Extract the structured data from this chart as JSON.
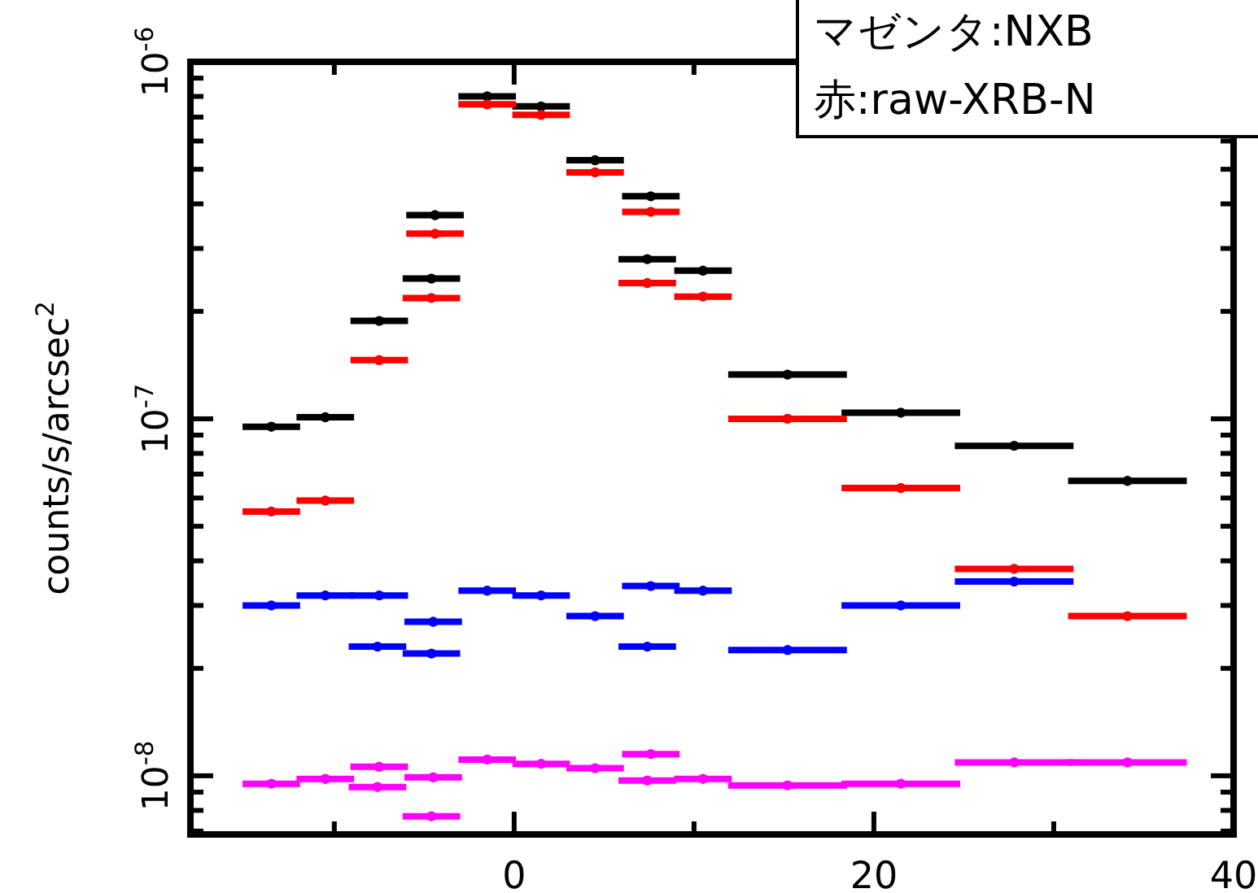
{
  "chart_data": {
    "type": "scatter",
    "ylabel": "counts/s/arcsec$^{2}$",
    "log": "y",
    "marker": "circle",
    "grid": false,
    "xlim": [
      -18,
      40
    ],
    "xticks": [
      0,
      20,
      40,
      {
        "value": -10,
        "label": null
      },
      {
        "value": 10,
        "label": null
      },
      {
        "value": 30,
        "label": null
      }
    ],
    "ylim": [
      6.85e-09,
      1e-06
    ],
    "yticks": [
      {
        "value": 1e-06,
        "label": "10$^{-6}$"
      },
      {
        "value": 1e-07,
        "label": "10$^{-7}$"
      },
      {
        "value": 1e-08,
        "label": "10$^{-8}$"
      },
      {
        "value": 9e-07,
        "label": null
      },
      {
        "value": 8e-07,
        "label": null
      },
      {
        "value": 7e-07,
        "label": null
      },
      {
        "value": 6e-07,
        "label": null
      },
      {
        "value": 5e-07,
        "label": null
      },
      {
        "value": 4e-07,
        "label": null
      },
      {
        "value": 3e-07,
        "label": null
      },
      {
        "value": 2e-07,
        "label": null
      },
      {
        "value": 9e-08,
        "label": null
      },
      {
        "value": 8e-08,
        "label": null
      },
      {
        "value": 7e-08,
        "label": null
      },
      {
        "value": 6e-08,
        "label": null
      },
      {
        "value": 5e-08,
        "label": null
      },
      {
        "value": 4e-08,
        "label": null
      },
      {
        "value": 3e-08,
        "label": null
      },
      {
        "value": 2e-08,
        "label": null
      },
      {
        "value": 9e-09,
        "label": null
      },
      {
        "value": 8e-09,
        "label": null
      },
      {
        "value": 7e-09,
        "label": null
      }
    ],
    "annotations": [
      "マゼンタ:NXB",
      "赤:raw-XRB-N"
    ],
    "series": [
      {
        "color": "#000000",
        "x": [
          -13.5,
          -10.5,
          -7.5,
          -4.6,
          -4.4,
          -1.5,
          1.5,
          4.5,
          7.6,
          7.4,
          10.5,
          15.2,
          21.5,
          27.8,
          34.1
        ],
        "values": [
          9.5e-08,
          1.01e-07,
          1.88e-07,
          2.47e-07,
          3.72e-07,
          8e-07,
          7.5e-07,
          5.3e-07,
          4.2e-07,
          2.8e-07,
          2.6e-07,
          1.33e-07,
          1.04e-07,
          8.4e-08,
          6.7e-08
        ],
        "xerrors": [
          1.6,
          1.6,
          1.6,
          1.6,
          1.6,
          1.6,
          1.6,
          1.6,
          1.6,
          1.6,
          1.6,
          3.3,
          3.3,
          3.3,
          3.3
        ]
      },
      {
        "color": "#ff0000",
        "x": [
          -13.5,
          -10.5,
          -7.5,
          -4.6,
          -4.4,
          -1.5,
          1.5,
          4.5,
          7.6,
          7.4,
          10.5,
          15.2,
          21.5,
          27.8,
          34.1
        ],
        "values": [
          5.5e-08,
          5.9e-08,
          1.46e-07,
          2.18e-07,
          3.3e-07,
          7.6e-07,
          7.1e-07,
          4.9e-07,
          3.8e-07,
          2.4e-07,
          2.2e-07,
          1e-07,
          6.4e-08,
          3.8e-08,
          2.8e-08
        ],
        "xerrors": [
          1.6,
          1.6,
          1.6,
          1.6,
          1.6,
          1.6,
          1.6,
          1.6,
          1.6,
          1.6,
          1.6,
          3.3,
          3.3,
          3.3,
          3.3
        ]
      },
      {
        "color": "#0000ff",
        "x": [
          -13.5,
          -10.5,
          -7.5,
          -7.6,
          -4.5,
          -4.6,
          -1.5,
          1.5,
          4.5,
          7.6,
          7.4,
          10.5,
          15.2,
          21.5,
          27.8
        ],
        "values": [
          3e-08,
          3.2e-08,
          3.2e-08,
          2.3e-08,
          2.7e-08,
          2.2e-08,
          3.3e-08,
          3.2e-08,
          2.8e-08,
          3.4e-08,
          2.3e-08,
          3.3e-08,
          2.25e-08,
          3e-08,
          3.5e-08
        ],
        "xerrors": [
          1.6,
          1.6,
          1.6,
          1.6,
          1.6,
          1.6,
          1.6,
          1.6,
          1.6,
          1.6,
          1.6,
          1.6,
          3.3,
          3.3,
          3.3
        ]
      },
      {
        "color": "#ff00ff",
        "x": [
          -13.5,
          -10.5,
          -7.5,
          -7.6,
          -4.5,
          -4.6,
          -1.5,
          1.5,
          4.5,
          7.6,
          7.4,
          10.5,
          15.2,
          21.5,
          27.8,
          34.1
        ],
        "values": [
          9.5e-09,
          9.8e-09,
          1.06e-08,
          9.3e-09,
          9.9e-09,
          7.7e-09,
          1.11e-08,
          1.08e-08,
          1.05e-08,
          1.15e-08,
          9.7e-09,
          9.8e-09,
          9.4e-09,
          9.5e-09,
          1.09e-08,
          1.09e-08
        ],
        "xerrors": [
          1.6,
          1.6,
          1.6,
          1.6,
          1.6,
          1.6,
          1.6,
          1.6,
          1.6,
          1.6,
          1.6,
          1.6,
          3.3,
          3.3,
          3.3,
          3.3
        ]
      }
    ]
  }
}
